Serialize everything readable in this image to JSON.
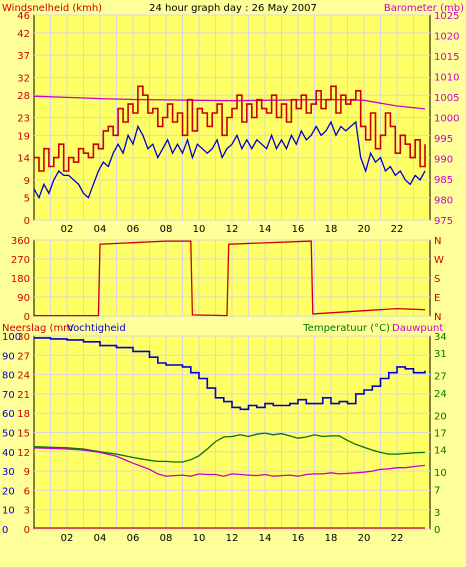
{
  "colors": {
    "background": "#ffff99",
    "plot_background": "#ffff66",
    "grid": "#d9d9d9",
    "wind_speed": "#cc0000",
    "wind_gust": "#cc0000",
    "wind_avg": "#0000cc",
    "barometer": "#cc00cc",
    "wind_direction": "#cc0000",
    "rain": "#cc0000",
    "humidity": "#0000cc",
    "temperature": "#007700",
    "dewpoint": "#cc00cc",
    "axis_text": "#000000"
  },
  "chart_data": [
    {
      "type": "line",
      "panel": "wind_barometer",
      "title": "24 hour graph day : 26 May 2007",
      "left_label": "Windsnelheid (kmh)",
      "right_label": "Barometer (mb)",
      "x_tick_labels": [
        "02",
        "04",
        "06",
        "08",
        "10",
        "12",
        "14",
        "16",
        "18",
        "20",
        "22"
      ],
      "x_ticks": [
        2,
        4,
        6,
        8,
        10,
        12,
        14,
        16,
        18,
        20,
        22
      ],
      "xlim": [
        0,
        24
      ],
      "left_ticks": [
        0,
        5,
        9,
        14,
        19,
        23,
        28,
        32,
        37,
        42,
        46
      ],
      "left_ylim": [
        0,
        46
      ],
      "right_ticks": [
        975,
        980,
        985,
        990,
        995,
        1000,
        1005,
        1010,
        1015,
        1020,
        1025
      ],
      "right_ylim": [
        975,
        1025
      ],
      "series": [
        {
          "axis": "left",
          "style": "steps",
          "x": [
            0,
            0.3,
            0.6,
            0.9,
            1.2,
            1.5,
            1.8,
            2.1,
            2.4,
            2.7,
            3,
            3.3,
            3.6,
            3.9,
            4.2,
            4.5,
            4.8,
            5.1,
            5.4,
            5.7,
            6,
            6.3,
            6.6,
            6.9,
            7.2,
            7.5,
            7.8,
            8.1,
            8.4,
            8.7,
            9,
            9.3,
            9.6,
            9.9,
            10.2,
            10.5,
            10.8,
            11.1,
            11.4,
            11.7,
            12,
            12.3,
            12.6,
            12.9,
            13.2,
            13.5,
            13.8,
            14.1,
            14.4,
            14.7,
            15,
            15.3,
            15.6,
            15.9,
            16.2,
            16.5,
            16.8,
            17.1,
            17.4,
            17.7,
            18,
            18.3,
            18.6,
            18.9,
            19.2,
            19.5,
            19.8,
            20.1,
            20.4,
            20.7,
            21,
            21.3,
            21.6,
            21.9,
            22.2,
            22.5,
            22.8,
            23.1,
            23.4,
            23.7
          ],
          "values": [
            14,
            11,
            16,
            12,
            14,
            17,
            11,
            14,
            13,
            16,
            15,
            14,
            17,
            16,
            20,
            21,
            19,
            25,
            22,
            26,
            24,
            30,
            28,
            24,
            25,
            21,
            23,
            26,
            22,
            24,
            19,
            27,
            20,
            25,
            24,
            21,
            24,
            26,
            19,
            23,
            25,
            28,
            22,
            26,
            23,
            27,
            25,
            24,
            28,
            23,
            26,
            22,
            27,
            25,
            28,
            24,
            26,
            29,
            25,
            27,
            30,
            24,
            28,
            26,
            27,
            29,
            21,
            18,
            24,
            16,
            19,
            24,
            21,
            15,
            19,
            17,
            14,
            18,
            12,
            17
          ]
        },
        {
          "axis": "left",
          "style": "line",
          "x": [
            0,
            0.3,
            0.6,
            0.9,
            1.2,
            1.5,
            1.8,
            2.1,
            2.4,
            2.7,
            3,
            3.3,
            3.6,
            3.9,
            4.2,
            4.5,
            4.8,
            5.1,
            5.4,
            5.7,
            6,
            6.3,
            6.6,
            6.9,
            7.2,
            7.5,
            7.8,
            8.1,
            8.4,
            8.7,
            9,
            9.3,
            9.6,
            9.9,
            10.2,
            10.5,
            10.8,
            11.1,
            11.4,
            11.7,
            12,
            12.3,
            12.6,
            12.9,
            13.2,
            13.5,
            13.8,
            14.1,
            14.4,
            14.7,
            15,
            15.3,
            15.6,
            15.9,
            16.2,
            16.5,
            16.8,
            17.1,
            17.4,
            17.7,
            18,
            18.3,
            18.6,
            18.9,
            19.2,
            19.5,
            19.8,
            20.1,
            20.4,
            20.7,
            21,
            21.3,
            21.6,
            21.9,
            22.2,
            22.5,
            22.8,
            23.1,
            23.4,
            23.7
          ],
          "values": [
            7,
            5,
            8,
            6,
            9,
            11,
            10,
            10,
            9,
            8,
            6,
            5,
            8,
            11,
            13,
            12,
            15,
            17,
            15,
            19,
            17,
            21,
            19,
            16,
            17,
            14,
            16,
            18,
            15,
            17,
            15,
            18,
            14,
            17,
            16,
            15,
            16,
            18,
            14,
            16,
            17,
            19,
            16,
            18,
            16,
            18,
            17,
            16,
            19,
            16,
            18,
            16,
            19,
            17,
            20,
            18,
            19,
            21,
            19,
            20,
            22,
            19,
            21,
            20,
            21,
            22,
            14,
            11,
            15,
            13,
            14,
            11,
            12,
            10,
            11,
            9,
            8,
            10,
            9,
            11
          ]
        },
        {
          "axis": "right",
          "style": "line",
          "x": [
            0,
            2,
            4,
            6,
            8,
            10,
            12,
            14,
            16,
            18,
            20,
            22,
            23.7
          ],
          "values": [
            1005.2,
            1004.9,
            1004.6,
            1004.4,
            1004.3,
            1004.2,
            1004.1,
            1004.2,
            1004.3,
            1004.4,
            1004.2,
            1002.8,
            1002.1
          ]
        }
      ]
    },
    {
      "type": "line",
      "panel": "wind_direction",
      "xlim": [
        0,
        24
      ],
      "x_ticks": [
        2,
        4,
        6,
        8,
        10,
        12,
        14,
        16,
        18,
        20,
        22
      ],
      "left_ticks": [
        0,
        90,
        180,
        270,
        360
      ],
      "left_ylim": [
        0,
        360
      ],
      "right_tick_labels": [
        "N",
        "E",
        "S",
        "W",
        "N"
      ],
      "series": [
        {
          "style": "steps",
          "x": [
            0,
            3.9,
            4.0,
            8.0,
            9.5,
            9.6,
            11.7,
            11.8,
            16.8,
            16.9,
            18,
            20,
            22,
            23.7
          ],
          "values": [
            2,
            2,
            340,
            355,
            355,
            5,
            2,
            340,
            355,
            10,
            15,
            25,
            35,
            30
          ]
        }
      ]
    },
    {
      "type": "line",
      "panel": "rain_humidity_temperature",
      "left_label": "Neerslag (mm",
      "left_label_2": "Vochtigheid",
      "right_label": "Temperatuur (°C)",
      "right_label_2": "Dauwpunt",
      "xlim": [
        0,
        24
      ],
      "x_tick_labels": [
        "02",
        "04",
        "06",
        "08",
        "10",
        "12",
        "14",
        "16",
        "18",
        "20",
        "22"
      ],
      "x_ticks": [
        2,
        4,
        6,
        8,
        10,
        12,
        14,
        16,
        18,
        20,
        22
      ],
      "left_ticks": [
        0,
        10,
        20,
        30,
        40,
        50,
        60,
        70,
        80,
        90,
        100
      ],
      "left_ylim": [
        0,
        100
      ],
      "left_ticks_2": [
        0,
        3,
        6,
        9,
        12,
        15,
        18,
        21,
        24,
        27,
        30
      ],
      "right_ticks": [
        0,
        3,
        7,
        10,
        14,
        17,
        20,
        24,
        27,
        31,
        34
      ],
      "right_ylim": [
        0,
        34
      ],
      "series": [
        {
          "name": "Neerslag",
          "axis": "left",
          "x": [
            0,
            23.7
          ],
          "values": [
            0.5,
            0.5
          ]
        },
        {
          "name": "Vochtigheid",
          "axis": "left",
          "x": [
            0,
            1,
            2,
            3,
            4,
            5,
            6,
            7,
            7.5,
            8,
            8.5,
            9,
            9.5,
            10,
            10.5,
            11,
            11.5,
            12,
            12.5,
            13,
            13.5,
            14,
            14.5,
            15,
            15.5,
            16,
            16.5,
            17,
            17.5,
            18,
            18.5,
            19,
            19.5,
            20,
            20.5,
            21,
            21.5,
            22,
            22.5,
            23,
            23.7
          ],
          "values": [
            99,
            98.5,
            98,
            97,
            95,
            94,
            92,
            89,
            86,
            85,
            85,
            84,
            81,
            78,
            73,
            68,
            66,
            63,
            62,
            64,
            63,
            65,
            64,
            64,
            65,
            67,
            65,
            65,
            68,
            65,
            66,
            65,
            70,
            72,
            74,
            78,
            81,
            84,
            83,
            81,
            82
          ]
        },
        {
          "name": "Temperatuur",
          "axis": "right",
          "x": [
            0,
            1,
            2,
            3,
            4,
            5,
            6,
            7,
            7.5,
            8,
            8.5,
            9,
            9.5,
            10,
            10.5,
            11,
            11.5,
            12,
            12.5,
            13,
            13.5,
            14,
            14.5,
            15,
            15.5,
            16,
            16.5,
            17,
            17.5,
            18,
            18.5,
            19,
            19.5,
            20,
            20.5,
            21,
            21.5,
            22,
            22.5,
            23,
            23.7
          ],
          "values": [
            14.5,
            14.4,
            14.3,
            14.1,
            13.6,
            13.2,
            12.6,
            12.1,
            11.9,
            11.9,
            11.8,
            11.8,
            12.2,
            12.9,
            14.1,
            15.4,
            16.2,
            16.3,
            16.6,
            16.3,
            16.7,
            16.9,
            16.6,
            16.8,
            16.4,
            16.0,
            16.2,
            16.6,
            16.3,
            16.4,
            16.4,
            15.6,
            14.9,
            14.4,
            13.9,
            13.5,
            13.2,
            13.2,
            13.3,
            13.4,
            13.5
          ]
        },
        {
          "name": "Dauwpunt",
          "axis": "right",
          "x": [
            0,
            1,
            2,
            3,
            4,
            5,
            6,
            7,
            7.5,
            8,
            8.5,
            9,
            9.5,
            10,
            10.5,
            11,
            11.5,
            12,
            12.5,
            13,
            13.5,
            14,
            14.5,
            15,
            15.5,
            16,
            16.5,
            17,
            17.5,
            18,
            18.5,
            19,
            19.5,
            20,
            20.5,
            21,
            21.5,
            22,
            22.5,
            23,
            23.7
          ],
          "values": [
            14.3,
            14.2,
            14.1,
            13.9,
            13.5,
            12.8,
            11.6,
            10.5,
            9.7,
            9.3,
            9.4,
            9.5,
            9.3,
            9.7,
            9.6,
            9.6,
            9.3,
            9.7,
            9.6,
            9.5,
            9.4,
            9.6,
            9.3,
            9.4,
            9.5,
            9.3,
            9.6,
            9.7,
            9.7,
            9.9,
            9.7,
            9.8,
            9.9,
            10.0,
            10.2,
            10.5,
            10.6,
            10.8,
            10.8,
            11.0,
            11.2
          ]
        }
      ]
    }
  ]
}
